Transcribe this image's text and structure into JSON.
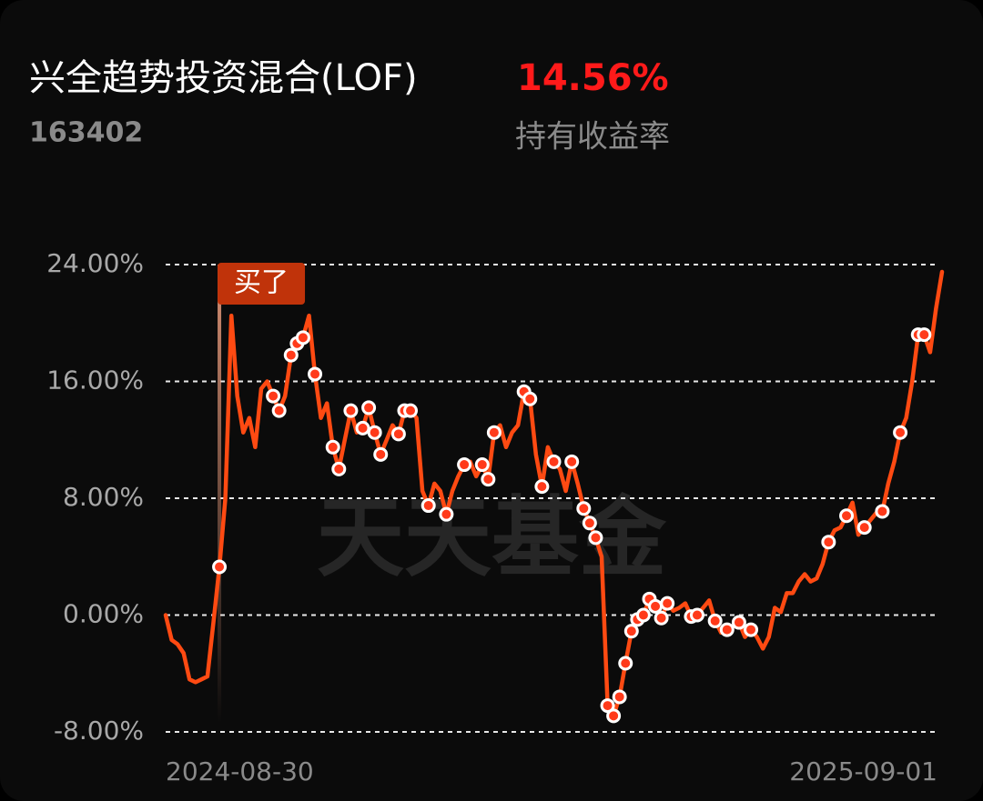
{
  "title": "兴全趋势投资混合(LOF)",
  "return_value": "14.56%",
  "code": "163402",
  "return_label": "持有收益率",
  "watermark": "天天基金",
  "chart_data": {
    "type": "line",
    "annotation": "买了",
    "categories": [
      "2024-08-30",
      null,
      null,
      null,
      null,
      null,
      null,
      null,
      null,
      null,
      null,
      null,
      null,
      null,
      null,
      null,
      null,
      null,
      null,
      null,
      null,
      null,
      null,
      null,
      null,
      null,
      null,
      null,
      null,
      null,
      null,
      null,
      null,
      null,
      null,
      null,
      null,
      null,
      null,
      null,
      null,
      null,
      null,
      null,
      null,
      null,
      null,
      null,
      null,
      null,
      null,
      null,
      null,
      null,
      null,
      null,
      null,
      null,
      null,
      null,
      null,
      null,
      null,
      null,
      null,
      null,
      null,
      null,
      null,
      null,
      null,
      null,
      null,
      null,
      null,
      null,
      null,
      null,
      null,
      null,
      null,
      null,
      null,
      null,
      null,
      null,
      null,
      null,
      null,
      null,
      null,
      null,
      null,
      null,
      null,
      null,
      null,
      null,
      null,
      null,
      null,
      null,
      null,
      null,
      null,
      null,
      null,
      null,
      null,
      null,
      null,
      null,
      null,
      null,
      null,
      null,
      null,
      null,
      null,
      null,
      null,
      null,
      null,
      null,
      null,
      null,
      null,
      null,
      null,
      null,
      "2025-09-01"
    ],
    "series": [
      {
        "color": "#ff4a12",
        "values": [
          0,
          -1.7,
          -2,
          -2.6,
          -4.4,
          -4.6,
          -4.4,
          -4.2,
          -0.5,
          3.3,
          8,
          20.5,
          15,
          12.5,
          13.5,
          11.5,
          15.5,
          16,
          15,
          14,
          15,
          17.8,
          18.6,
          19,
          20.5,
          16.5,
          13.5,
          14.5,
          11.5,
          10,
          12,
          14,
          12.5,
          12.8,
          14.2,
          12.5,
          11,
          12,
          13,
          12.4,
          14,
          14,
          13.5,
          8.5,
          7.5,
          9,
          8.5,
          6.9,
          8.5,
          9.5,
          10.3,
          10.5,
          9.5,
          10.3,
          9.3,
          12.5,
          13,
          11.5,
          12.5,
          13,
          15.3,
          14.8,
          11,
          8.8,
          11.5,
          10.5,
          10,
          8.5,
          10.5,
          9,
          7.3,
          6.3,
          5.3,
          4,
          -6.2,
          -6.9,
          -5.6,
          -3.3,
          -1.1,
          -0.3,
          0,
          1.1,
          0.6,
          -0.2,
          0.8,
          0.3,
          0.5,
          0.8,
          -0.1,
          0,
          0.5,
          1,
          -0.4,
          -1.2,
          -1.0,
          -0.8,
          -0.5,
          -1.5,
          -1.0,
          -1.5,
          -2.3,
          -1.5,
          0.5,
          0.2,
          1.5,
          1.5,
          2.3,
          2.8,
          2.3,
          2.5,
          3.5,
          5.0,
          5.8,
          6,
          6.8,
          7.7,
          5.5,
          6.0,
          6.5,
          7,
          7.1,
          9,
          10.5,
          12.5,
          13.5,
          16,
          19.2,
          19.2,
          18,
          21,
          23.5
        ]
      },
      {
        "color": "#ff3a1a",
        "values": [
          null,
          null,
          null,
          null,
          null,
          null,
          null,
          null,
          null,
          3.3,
          null,
          null,
          null,
          null,
          null,
          null,
          null,
          null,
          15,
          14,
          null,
          17.8,
          18.6,
          19,
          null,
          16.5,
          null,
          null,
          11.5,
          10,
          null,
          14,
          null,
          12.8,
          14.2,
          12.5,
          11,
          null,
          null,
          12.4,
          14,
          14,
          null,
          null,
          7.5,
          null,
          null,
          6.9,
          null,
          null,
          10.3,
          null,
          null,
          10.3,
          9.3,
          12.5,
          null,
          null,
          null,
          null,
          15.3,
          14.8,
          null,
          8.8,
          null,
          10.5,
          null,
          null,
          10.5,
          null,
          7.3,
          6.3,
          5.3,
          null,
          -6.2,
          -6.9,
          -5.6,
          -3.3,
          -1.1,
          -0.3,
          0,
          1.1,
          0.6,
          -0.2,
          0.8,
          null,
          null,
          null,
          -0.1,
          0,
          null,
          null,
          -0.4,
          null,
          -1.0,
          null,
          -0.5,
          null,
          -1.0,
          null,
          null,
          null,
          null,
          null,
          null,
          null,
          null,
          null,
          null,
          null,
          null,
          5.0,
          null,
          null,
          6.8,
          null,
          null,
          6.0,
          null,
          null,
          7.1,
          null,
          null,
          12.5,
          null,
          null,
          19.2,
          19.2,
          null,
          null,
          null
        ]
      }
    ],
    "ylim": [
      -8,
      24
    ],
    "yticks": [
      {
        "value": 24,
        "label": "24.00%"
      },
      {
        "value": 16,
        "label": "16.00%"
      },
      {
        "value": 8,
        "label": "8.00%"
      },
      {
        "value": 0,
        "label": "0.00%"
      },
      {
        "value": -8,
        "label": "-8.00%"
      }
    ],
    "grid": true
  }
}
